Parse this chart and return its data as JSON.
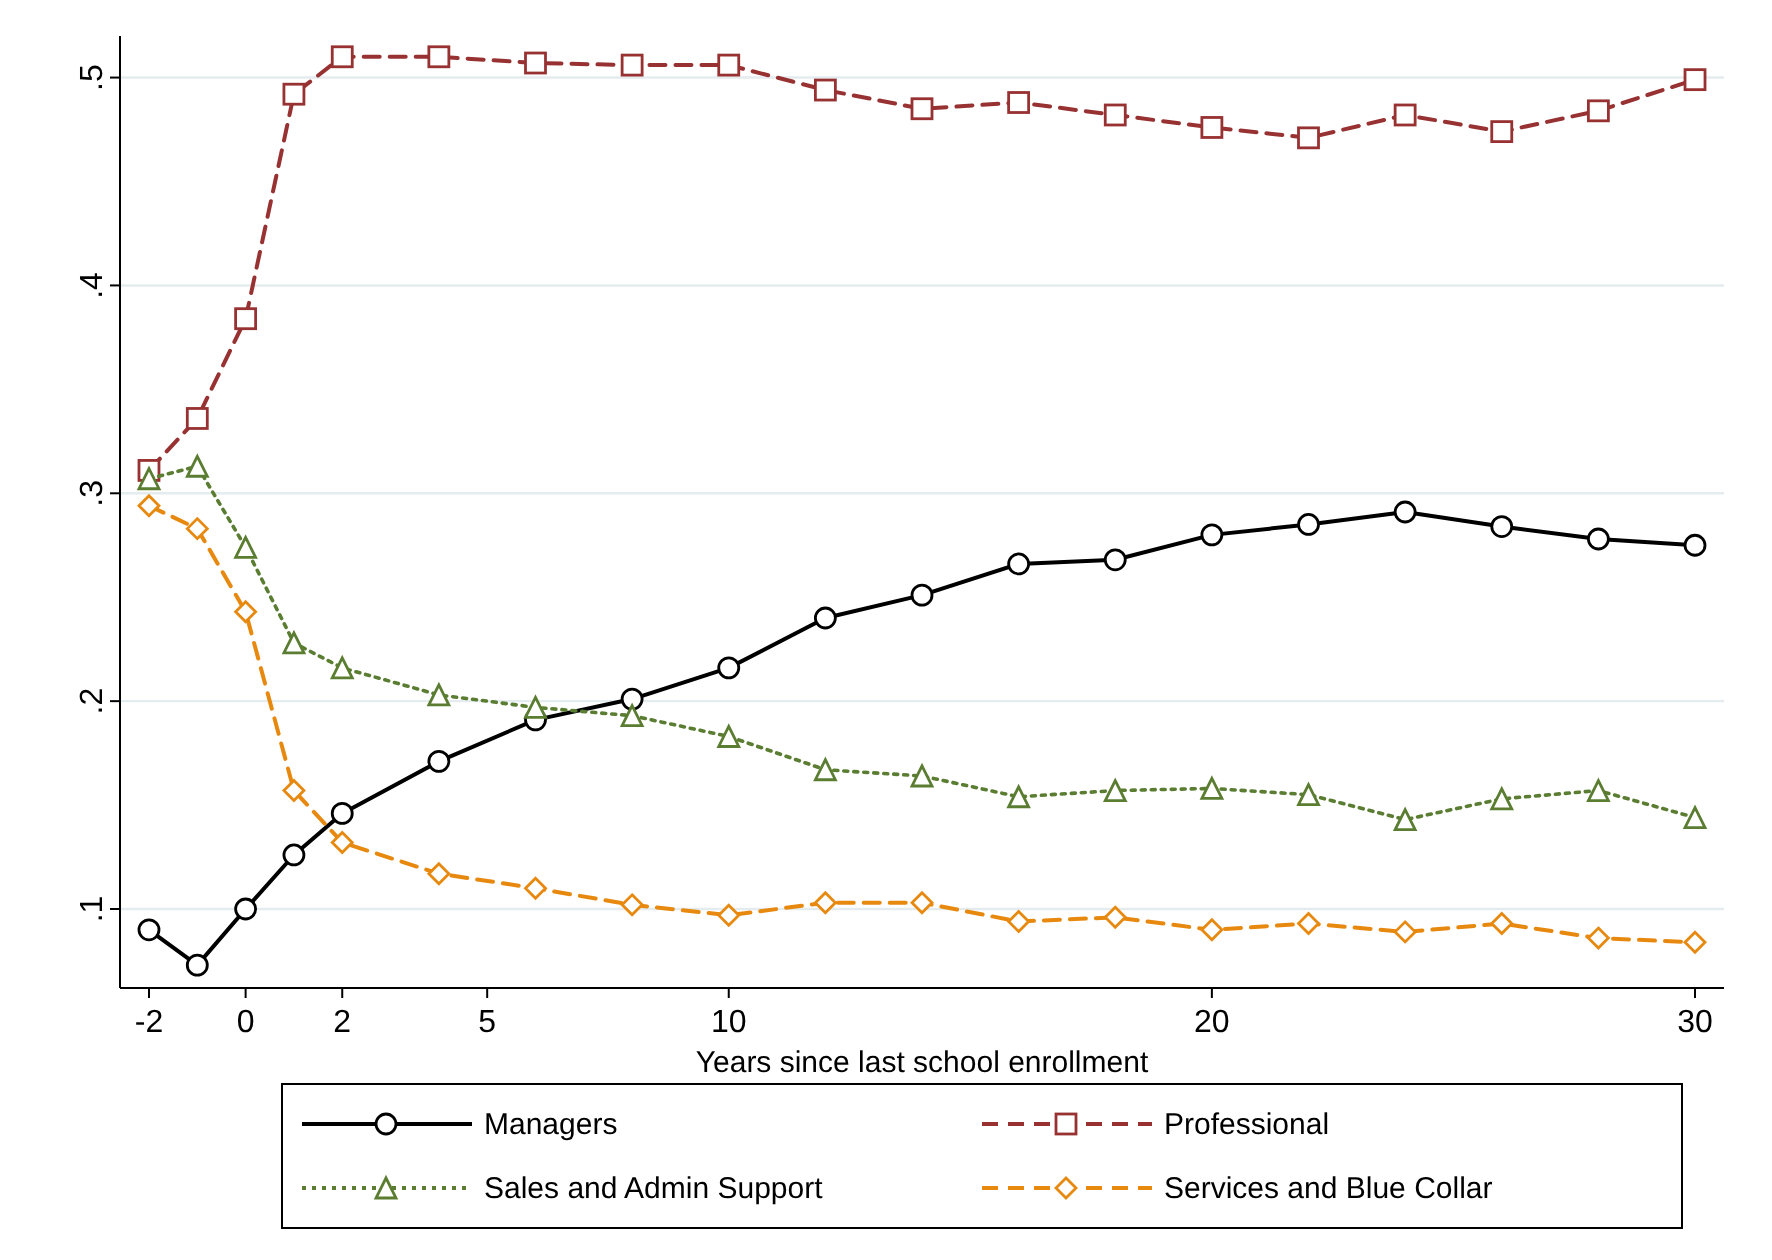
{
  "chart_data": {
    "type": "line",
    "xlabel": "Years since last school enrollment",
    "x": [
      -2,
      -1,
      0,
      1,
      2,
      4,
      6,
      8,
      10,
      12,
      14,
      16,
      18,
      20,
      22,
      24,
      26,
      28,
      30
    ],
    "series": [
      {
        "name": "Managers",
        "color": "#000000",
        "marker": "circle",
        "line_style": "solid",
        "values": [
          0.09,
          0.073,
          0.1,
          0.126,
          0.146,
          0.171,
          0.191,
          0.201,
          0.216,
          0.24,
          0.251,
          0.266,
          0.268,
          0.28,
          0.285,
          0.291,
          0.284,
          0.278,
          0.275
        ]
      },
      {
        "name": "Professional",
        "color": "#983232",
        "marker": "square",
        "line_style": "dashed",
        "values": [
          0.311,
          0.336,
          0.384,
          0.492,
          0.51,
          0.51,
          0.507,
          0.506,
          0.506,
          0.494,
          0.485,
          0.488,
          0.482,
          0.476,
          0.471,
          0.482,
          0.474,
          0.484,
          0.499
        ]
      },
      {
        "name": "Sales and Admin Support",
        "color": "#5a7d32",
        "marker": "triangle",
        "line_style": "dotted",
        "values": [
          0.307,
          0.313,
          0.274,
          0.228,
          0.216,
          0.203,
          0.197,
          0.193,
          0.183,
          0.167,
          0.164,
          0.154,
          0.157,
          0.158,
          0.155,
          0.143,
          0.153,
          0.157,
          0.144
        ]
      },
      {
        "name": "Services and Blue Collar",
        "color": "#e8890f",
        "marker": "diamond",
        "line_style": "dashed",
        "values": [
          0.294,
          0.283,
          0.243,
          0.157,
          0.132,
          0.117,
          0.11,
          0.102,
          0.097,
          0.103,
          0.103,
          0.094,
          0.096,
          0.09,
          0.093,
          0.089,
          0.093,
          0.086,
          0.084
        ]
      }
    ],
    "xlim": [
      -2.6,
      30.6
    ],
    "xticks": [
      -2,
      0,
      2,
      5,
      10,
      20,
      30
    ],
    "ylim": [
      0.062,
      0.52
    ],
    "yticks": [
      {
        "value": 0.1,
        "label": ".1"
      },
      {
        "value": 0.2,
        "label": ".2"
      },
      {
        "value": 0.3,
        "label": ".3"
      },
      {
        "value": 0.4,
        "label": ".4"
      },
      {
        "value": 0.5,
        "label": ".5"
      }
    ],
    "grid": "y",
    "legend": "bottom"
  }
}
